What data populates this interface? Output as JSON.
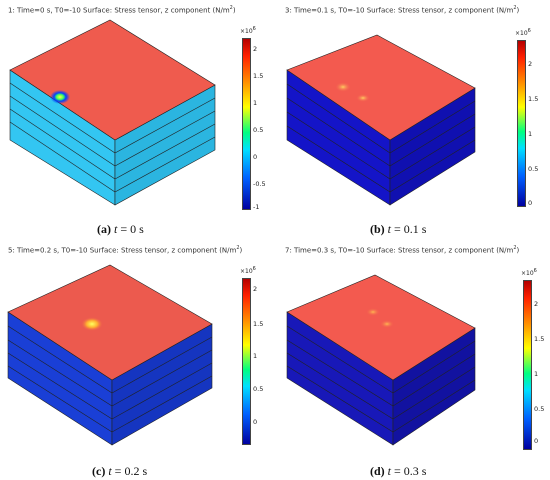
{
  "panels": [
    {
      "id": "a",
      "title_prefix": "1: Time=0 s, T0=-10   Surface: Stress tensor, z component (N/m",
      "title_sup": "2",
      "title_suffix": ")",
      "colorbar_exponent": "×10",
      "colorbar_exponent_power": "6",
      "colorbar_ticks": [
        "2",
        "1.5",
        "1",
        "0.5",
        "0",
        "-0.5",
        "-1"
      ],
      "caption_letter": "(a)",
      "caption_var": "t",
      "caption_eq": " = 0 s",
      "side_color": "#33c6f2",
      "top_color": "#ef5b4e"
    },
    {
      "id": "b",
      "title_prefix": "3: Time=0.1 s, T0=-10   Surface: Stress tensor, z component (N/m",
      "title_sup": "2",
      "title_suffix": ")",
      "colorbar_exponent": "×10",
      "colorbar_exponent_power": "6",
      "colorbar_ticks": [
        "2",
        "1.5",
        "1",
        "0.5",
        "0"
      ],
      "caption_letter": "(b)",
      "caption_var": "t",
      "caption_eq": " = 0.1 s",
      "side_color": "#1414c8",
      "top_color": "#f35a4f"
    },
    {
      "id": "c",
      "title_prefix": "5: Time=0.2 s, T0=-10   Surface: Stress tensor, z component (N/m",
      "title_sup": "2",
      "title_suffix": ")",
      "colorbar_exponent": "×10",
      "colorbar_exponent_power": "6",
      "colorbar_ticks": [
        "2",
        "1.5",
        "1",
        "0.5",
        "0"
      ],
      "caption_letter": "(c)",
      "caption_var": "t",
      "caption_eq": " = 0.2 s",
      "side_color": "#1a3fd6",
      "top_color": "#ec5a4e"
    },
    {
      "id": "d",
      "title_prefix": "7: Time=0.3 s, T0=-10   Surface: Stress tensor, z component (N/m",
      "title_sup": "2",
      "title_suffix": ")",
      "colorbar_exponent": "×10",
      "colorbar_exponent_power": "6",
      "colorbar_ticks": [
        "2",
        "1.5",
        "1",
        "0.5",
        "0"
      ],
      "caption_letter": "(d)",
      "caption_var": "t",
      "caption_eq": " = 0.3 s",
      "side_color": "#1818b8",
      "top_color": "#f35a4f"
    }
  ]
}
